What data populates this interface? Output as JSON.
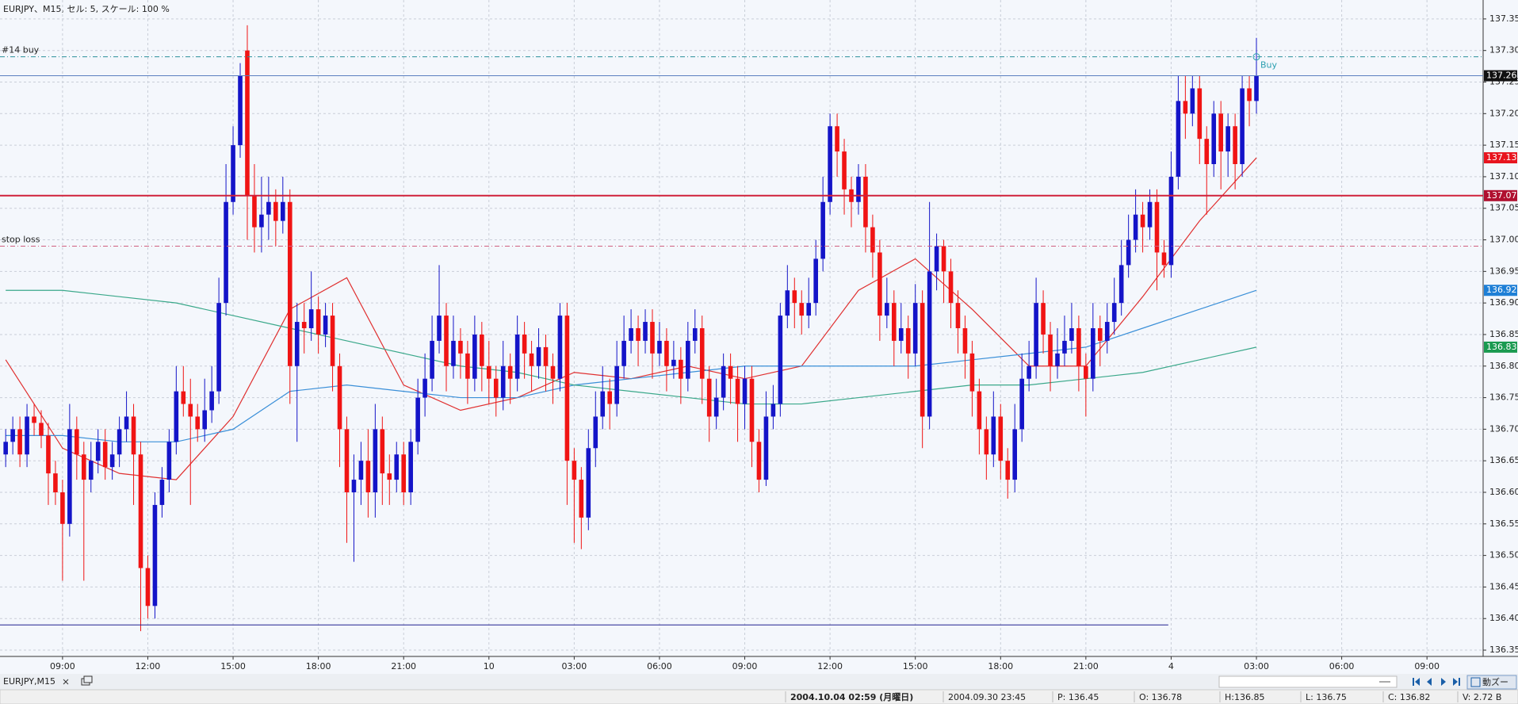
{
  "chart_data": {
    "type": "candlestick",
    "title": "EURJPY、M15, セル: 5, スケール: 100 %",
    "up_color": "#1414c8",
    "down_color": "#f01414",
    "grid": true,
    "xlim": [
      -0.8,
      207.9
    ],
    "ylim": [
      136.34,
      137.38
    ],
    "xticks": [
      {
        "value": 8,
        "label": "09:00"
      },
      {
        "value": 20,
        "label": "12:00"
      },
      {
        "value": 32,
        "label": "15:00"
      },
      {
        "value": 44,
        "label": "18:00"
      },
      {
        "value": 56,
        "label": "21:00"
      },
      {
        "value": 68,
        "label": "10"
      },
      {
        "value": 80,
        "label": "03:00"
      },
      {
        "value": 92,
        "label": "06:00"
      },
      {
        "value": 104,
        "label": "09:00"
      },
      {
        "value": 116,
        "label": "12:00"
      },
      {
        "value": 128,
        "label": "15:00"
      },
      {
        "value": 140,
        "label": "18:00"
      },
      {
        "value": 152,
        "label": "21:00"
      },
      {
        "value": 164,
        "label": "4"
      },
      {
        "value": 176,
        "label": "03:00"
      },
      {
        "value": 188,
        "label": "06:00"
      },
      {
        "value": 200,
        "label": "09:00"
      }
    ],
    "yticks": [
      136.35,
      {
        "value": 136.4,
        "label": "136.40"
      },
      136.45,
      {
        "value": 136.5,
        "label": "136.50"
      },
      136.55,
      {
        "value": 136.6,
        "label": "136.60"
      },
      136.65,
      {
        "value": 136.7,
        "label": "136.70"
      },
      136.75,
      {
        "value": 136.8,
        "label": "136.80"
      },
      136.85,
      {
        "value": 136.9,
        "label": "136.90"
      },
      136.95,
      {
        "value": 137.0,
        "label": "137.00"
      },
      137.05,
      {
        "value": 137.1,
        "label": "137.10"
      },
      137.15,
      {
        "value": 137.2,
        "label": "137.20"
      },
      137.25,
      {
        "value": 137.3,
        "label": "137.30"
      },
      137.35
    ],
    "candles": [
      [
        136.66,
        136.7,
        136.64,
        136.68
      ],
      [
        136.68,
        136.72,
        136.66,
        136.7
      ],
      [
        136.7,
        136.72,
        136.64,
        136.66
      ],
      [
        136.66,
        136.74,
        136.64,
        136.72
      ],
      [
        136.72,
        136.74,
        136.69,
        136.71
      ],
      [
        136.71,
        136.73,
        136.67,
        136.69
      ],
      [
        136.69,
        136.71,
        136.58,
        136.63
      ],
      [
        136.63,
        136.65,
        136.58,
        136.6
      ],
      [
        136.6,
        136.62,
        136.46,
        136.55
      ],
      [
        136.55,
        136.74,
        136.53,
        136.7
      ],
      [
        136.7,
        136.72,
        136.62,
        136.66
      ],
      [
        136.66,
        136.68,
        136.46,
        136.62
      ],
      [
        136.62,
        136.68,
        136.6,
        136.65
      ],
      [
        136.65,
        136.7,
        136.63,
        136.68
      ],
      [
        136.68,
        136.7,
        136.62,
        136.64
      ],
      [
        136.64,
        136.68,
        136.62,
        136.66
      ],
      [
        136.66,
        136.72,
        136.64,
        136.7
      ],
      [
        136.7,
        136.76,
        136.68,
        136.72
      ],
      [
        136.72,
        136.74,
        136.58,
        136.66
      ],
      [
        136.66,
        136.68,
        136.38,
        136.48
      ],
      [
        136.48,
        136.5,
        136.4,
        136.42
      ],
      [
        136.42,
        136.6,
        136.4,
        136.58
      ],
      [
        136.58,
        136.64,
        136.56,
        136.62
      ],
      [
        136.62,
        136.7,
        136.6,
        136.68
      ],
      [
        136.68,
        136.8,
        136.66,
        136.76
      ],
      [
        136.76,
        136.8,
        136.72,
        136.74
      ],
      [
        136.74,
        136.78,
        136.58,
        136.72
      ],
      [
        136.72,
        136.74,
        136.68,
        136.7
      ],
      [
        136.7,
        136.78,
        136.68,
        136.73
      ],
      [
        136.73,
        136.8,
        136.71,
        136.76
      ],
      [
        136.76,
        136.94,
        136.74,
        136.9
      ],
      [
        136.9,
        137.12,
        136.88,
        137.06
      ],
      [
        137.06,
        137.18,
        137.04,
        137.15
      ],
      [
        137.15,
        137.28,
        137.13,
        137.26
      ],
      [
        137.3,
        137.34,
        137.0,
        137.07
      ],
      [
        137.07,
        137.12,
        136.98,
        137.02
      ],
      [
        137.02,
        137.1,
        136.98,
        137.04
      ],
      [
        137.04,
        137.1,
        137.0,
        137.06
      ],
      [
        137.06,
        137.08,
        136.99,
        137.03
      ],
      [
        137.03,
        137.1,
        137.01,
        137.06
      ],
      [
        137.06,
        137.08,
        136.74,
        136.8
      ],
      [
        136.8,
        136.9,
        136.68,
        136.87
      ],
      [
        136.87,
        136.9,
        136.82,
        136.86
      ],
      [
        136.86,
        136.95,
        136.84,
        136.89
      ],
      [
        136.89,
        136.91,
        136.82,
        136.85
      ],
      [
        136.85,
        136.9,
        136.83,
        136.88
      ],
      [
        136.88,
        136.9,
        136.76,
        136.8
      ],
      [
        136.8,
        136.82,
        136.64,
        136.7
      ],
      [
        136.7,
        136.72,
        136.52,
        136.6
      ],
      [
        136.6,
        136.66,
        136.49,
        136.62
      ],
      [
        136.62,
        136.68,
        136.58,
        136.65
      ],
      [
        136.65,
        136.7,
        136.56,
        136.6
      ],
      [
        136.6,
        136.74,
        136.56,
        136.7
      ],
      [
        136.7,
        136.72,
        136.58,
        136.63
      ],
      [
        136.63,
        136.66,
        136.58,
        136.62
      ],
      [
        136.62,
        136.68,
        136.6,
        136.66
      ],
      [
        136.66,
        136.68,
        136.58,
        136.6
      ],
      [
        136.6,
        136.7,
        136.58,
        136.68
      ],
      [
        136.68,
        136.78,
        136.66,
        136.75
      ],
      [
        136.75,
        136.82,
        136.72,
        136.78
      ],
      [
        136.78,
        136.88,
        136.76,
        136.84
      ],
      [
        136.84,
        136.96,
        136.82,
        136.88
      ],
      [
        136.88,
        136.9,
        136.76,
        136.8
      ],
      [
        136.8,
        136.88,
        136.78,
        136.84
      ],
      [
        136.84,
        136.86,
        136.78,
        136.82
      ],
      [
        136.82,
        136.84,
        136.74,
        136.78
      ],
      [
        136.78,
        136.88,
        136.76,
        136.85
      ],
      [
        136.85,
        136.87,
        136.76,
        136.8
      ],
      [
        136.8,
        136.84,
        136.74,
        136.78
      ],
      [
        136.78,
        136.8,
        136.72,
        136.75
      ],
      [
        136.75,
        136.84,
        136.73,
        136.8
      ],
      [
        136.8,
        136.82,
        136.74,
        136.78
      ],
      [
        136.78,
        136.88,
        136.76,
        136.85
      ],
      [
        136.85,
        136.87,
        136.78,
        136.82
      ],
      [
        136.82,
        136.84,
        136.76,
        136.8
      ],
      [
        136.8,
        136.86,
        136.78,
        136.83
      ],
      [
        136.83,
        136.85,
        136.76,
        136.8
      ],
      [
        136.8,
        136.82,
        136.74,
        136.78
      ],
      [
        136.78,
        136.9,
        136.76,
        136.88
      ],
      [
        136.88,
        136.9,
        136.58,
        136.65
      ],
      [
        136.65,
        136.67,
        136.52,
        136.62
      ],
      [
        136.62,
        136.64,
        136.51,
        136.56
      ],
      [
        136.56,
        136.7,
        136.54,
        136.67
      ],
      [
        136.67,
        136.76,
        136.64,
        136.72
      ],
      [
        136.72,
        136.8,
        136.7,
        136.76
      ],
      [
        136.76,
        136.78,
        136.7,
        136.74
      ],
      [
        136.74,
        136.84,
        136.72,
        136.8
      ],
      [
        136.8,
        136.88,
        136.78,
        136.84
      ],
      [
        136.84,
        136.89,
        136.82,
        136.86
      ],
      [
        136.86,
        136.88,
        136.8,
        136.84
      ],
      [
        136.84,
        136.89,
        136.82,
        136.87
      ],
      [
        136.87,
        136.89,
        136.78,
        136.82
      ],
      [
        136.82,
        136.87,
        136.8,
        136.84
      ],
      [
        136.84,
        136.86,
        136.76,
        136.8
      ],
      [
        136.8,
        136.84,
        136.78,
        136.81
      ],
      [
        136.81,
        136.83,
        136.74,
        136.78
      ],
      [
        136.78,
        136.87,
        136.76,
        136.84
      ],
      [
        136.84,
        136.89,
        136.82,
        136.86
      ],
      [
        136.86,
        136.88,
        136.74,
        136.78
      ],
      [
        136.78,
        136.8,
        136.68,
        136.72
      ],
      [
        136.72,
        136.78,
        136.7,
        136.75
      ],
      [
        136.75,
        136.82,
        136.73,
        136.8
      ],
      [
        136.8,
        136.82,
        136.74,
        136.78
      ],
      [
        136.78,
        136.8,
        136.68,
        136.74
      ],
      [
        136.74,
        136.8,
        136.7,
        136.78
      ],
      [
        136.78,
        136.8,
        136.64,
        136.68
      ],
      [
        136.68,
        136.7,
        136.6,
        136.62
      ],
      [
        136.62,
        136.76,
        136.61,
        136.72
      ],
      [
        136.72,
        136.77,
        136.7,
        136.74
      ],
      [
        136.74,
        136.9,
        136.72,
        136.88
      ],
      [
        136.88,
        136.96,
        136.86,
        136.92
      ],
      [
        136.92,
        136.94,
        136.86,
        136.9
      ],
      [
        136.9,
        136.92,
        136.85,
        136.88
      ],
      [
        136.88,
        136.94,
        136.86,
        136.9
      ],
      [
        136.9,
        137.0,
        136.88,
        136.97
      ],
      [
        136.97,
        137.1,
        136.95,
        137.06
      ],
      [
        137.06,
        137.2,
        137.04,
        137.18
      ],
      [
        137.18,
        137.2,
        137.1,
        137.14
      ],
      [
        137.14,
        137.16,
        137.04,
        137.08
      ],
      [
        137.08,
        137.1,
        137.02,
        137.06
      ],
      [
        137.06,
        137.12,
        137.04,
        137.1
      ],
      [
        137.1,
        137.12,
        136.98,
        137.02
      ],
      [
        137.02,
        137.04,
        136.94,
        136.98
      ],
      [
        136.98,
        137.0,
        136.84,
        136.88
      ],
      [
        136.88,
        136.94,
        136.86,
        136.9
      ],
      [
        136.9,
        136.92,
        136.8,
        136.84
      ],
      [
        136.84,
        136.9,
        136.82,
        136.86
      ],
      [
        136.86,
        136.88,
        136.78,
        136.82
      ],
      [
        136.82,
        136.93,
        136.8,
        136.9
      ],
      [
        136.9,
        136.92,
        136.67,
        136.72
      ],
      [
        136.72,
        137.06,
        136.7,
        136.95
      ],
      [
        136.95,
        137.01,
        136.92,
        136.99
      ],
      [
        136.99,
        137.0,
        136.9,
        136.95
      ],
      [
        136.95,
        136.97,
        136.86,
        136.9
      ],
      [
        136.9,
        136.92,
        136.82,
        136.86
      ],
      [
        136.86,
        136.88,
        136.78,
        136.82
      ],
      [
        136.82,
        136.84,
        136.72,
        136.76
      ],
      [
        136.76,
        136.78,
        136.66,
        136.7
      ],
      [
        136.7,
        136.72,
        136.62,
        136.66
      ],
      [
        136.66,
        136.76,
        136.64,
        136.72
      ],
      [
        136.72,
        136.74,
        136.62,
        136.65
      ],
      [
        136.65,
        136.67,
        136.59,
        136.62
      ],
      [
        136.62,
        136.74,
        136.6,
        136.7
      ],
      [
        136.7,
        136.82,
        136.68,
        136.78
      ],
      [
        136.78,
        136.84,
        136.76,
        136.8
      ],
      [
        136.8,
        136.94,
        136.78,
        136.9
      ],
      [
        136.9,
        136.92,
        136.82,
        136.85
      ],
      [
        136.85,
        136.87,
        136.76,
        136.8
      ],
      [
        136.8,
        136.86,
        136.78,
        136.82
      ],
      [
        136.82,
        136.88,
        136.8,
        136.84
      ],
      [
        136.84,
        136.9,
        136.82,
        136.86
      ],
      [
        136.86,
        136.88,
        136.76,
        136.8
      ],
      [
        136.8,
        136.82,
        136.72,
        136.78
      ],
      [
        136.78,
        136.9,
        136.76,
        136.86
      ],
      [
        136.86,
        136.88,
        136.8,
        136.84
      ],
      [
        136.84,
        136.9,
        136.82,
        136.87
      ],
      [
        136.87,
        136.94,
        136.85,
        136.9
      ],
      [
        136.9,
        137.0,
        136.88,
        136.96
      ],
      [
        136.96,
        137.04,
        136.94,
        137.0
      ],
      [
        137.0,
        137.08,
        136.98,
        137.04
      ],
      [
        137.04,
        137.06,
        136.98,
        137.02
      ],
      [
        137.02,
        137.08,
        137.0,
        137.06
      ],
      [
        137.06,
        137.08,
        136.92,
        136.98
      ],
      [
        136.98,
        137.0,
        136.94,
        136.96
      ],
      [
        136.96,
        137.14,
        136.94,
        137.1
      ],
      [
        137.1,
        137.26,
        137.08,
        137.22
      ],
      [
        137.22,
        137.26,
        137.16,
        137.2
      ],
      [
        137.2,
        137.26,
        137.18,
        137.24
      ],
      [
        137.24,
        137.26,
        137.12,
        137.16
      ],
      [
        137.16,
        137.18,
        137.04,
        137.12
      ],
      [
        137.12,
        137.22,
        137.1,
        137.2
      ],
      [
        137.2,
        137.22,
        137.08,
        137.14
      ],
      [
        137.14,
        137.2,
        137.1,
        137.18
      ],
      [
        137.18,
        137.2,
        137.08,
        137.12
      ],
      [
        137.12,
        137.26,
        137.1,
        137.24
      ],
      [
        137.24,
        137.26,
        137.18,
        137.22
      ],
      [
        137.22,
        137.32,
        137.2,
        137.26
      ]
    ],
    "x": [
      0,
      8,
      16,
      24,
      32,
      40,
      48,
      56,
      64,
      72,
      80,
      88,
      96,
      104,
      112,
      120,
      128,
      136,
      144,
      152,
      160,
      168,
      176
    ],
    "series": [
      {
        "color": "#e03030",
        "values": [
          136.81,
          136.67,
          136.63,
          136.62,
          136.72,
          136.89,
          136.94,
          136.77,
          136.73,
          136.75,
          136.79,
          136.78,
          136.8,
          136.78,
          136.8,
          136.92,
          136.97,
          136.89,
          136.8,
          136.8,
          136.91,
          137.03,
          137.13
        ]
      },
      {
        "color": "#3a8fd8",
        "values": [
          136.69,
          136.69,
          136.68,
          136.68,
          136.7,
          136.76,
          136.77,
          136.76,
          136.75,
          136.75,
          136.77,
          136.78,
          136.79,
          136.8,
          136.8,
          136.8,
          136.8,
          136.81,
          136.82,
          136.83,
          136.86,
          136.89,
          136.92
        ]
      },
      {
        "color": "#3aa88a",
        "values": [
          136.92,
          136.92,
          136.91,
          136.9,
          136.88,
          136.86,
          136.84,
          136.82,
          136.8,
          136.79,
          136.77,
          136.76,
          136.75,
          136.74,
          136.74,
          136.75,
          136.76,
          136.77,
          136.77,
          136.78,
          136.79,
          136.81,
          136.83
        ]
      }
    ],
    "levels": [
      {
        "label": "#14 buy",
        "value": 137.29,
        "color": "#2a8f9a",
        "style": "dashdot"
      },
      {
        "value": 137.26,
        "color": "#5a7fc0",
        "style": "solid"
      },
      {
        "value": 137.07,
        "color": "#d0203a",
        "style": "thick"
      },
      {
        "label": "stop loss",
        "value": 136.99,
        "color": "#d06080",
        "style": "dashdot"
      },
      {
        "value": 136.39,
        "color": "#202090",
        "style": "solid",
        "x_end": 163.6
      }
    ],
    "price_tags": [
      {
        "value": 137.26,
        "color": "#111111"
      },
      {
        "value": 137.13,
        "color": "#e8141e"
      },
      {
        "value": 137.07,
        "color": "#b01030"
      },
      {
        "value": 136.92,
        "color": "#1e7fd6"
      },
      {
        "value": 136.83,
        "color": "#1a9a50"
      }
    ],
    "trade_marker": {
      "label": "Buy",
      "x": 176,
      "value": 137.29,
      "color": "#2a9fb0"
    }
  },
  "tabs": [
    "EURJPY,M15"
  ],
  "toolbar_button": "動ズー",
  "status": [
    "2004.10.04 02:59 (月曜日)",
    "2004.09.30 23:45",
    "P: 136.45",
    "O: 136.78",
    "H:136.85",
    "L: 136.75",
    "C: 136.82",
    "V: 2.72 B"
  ]
}
